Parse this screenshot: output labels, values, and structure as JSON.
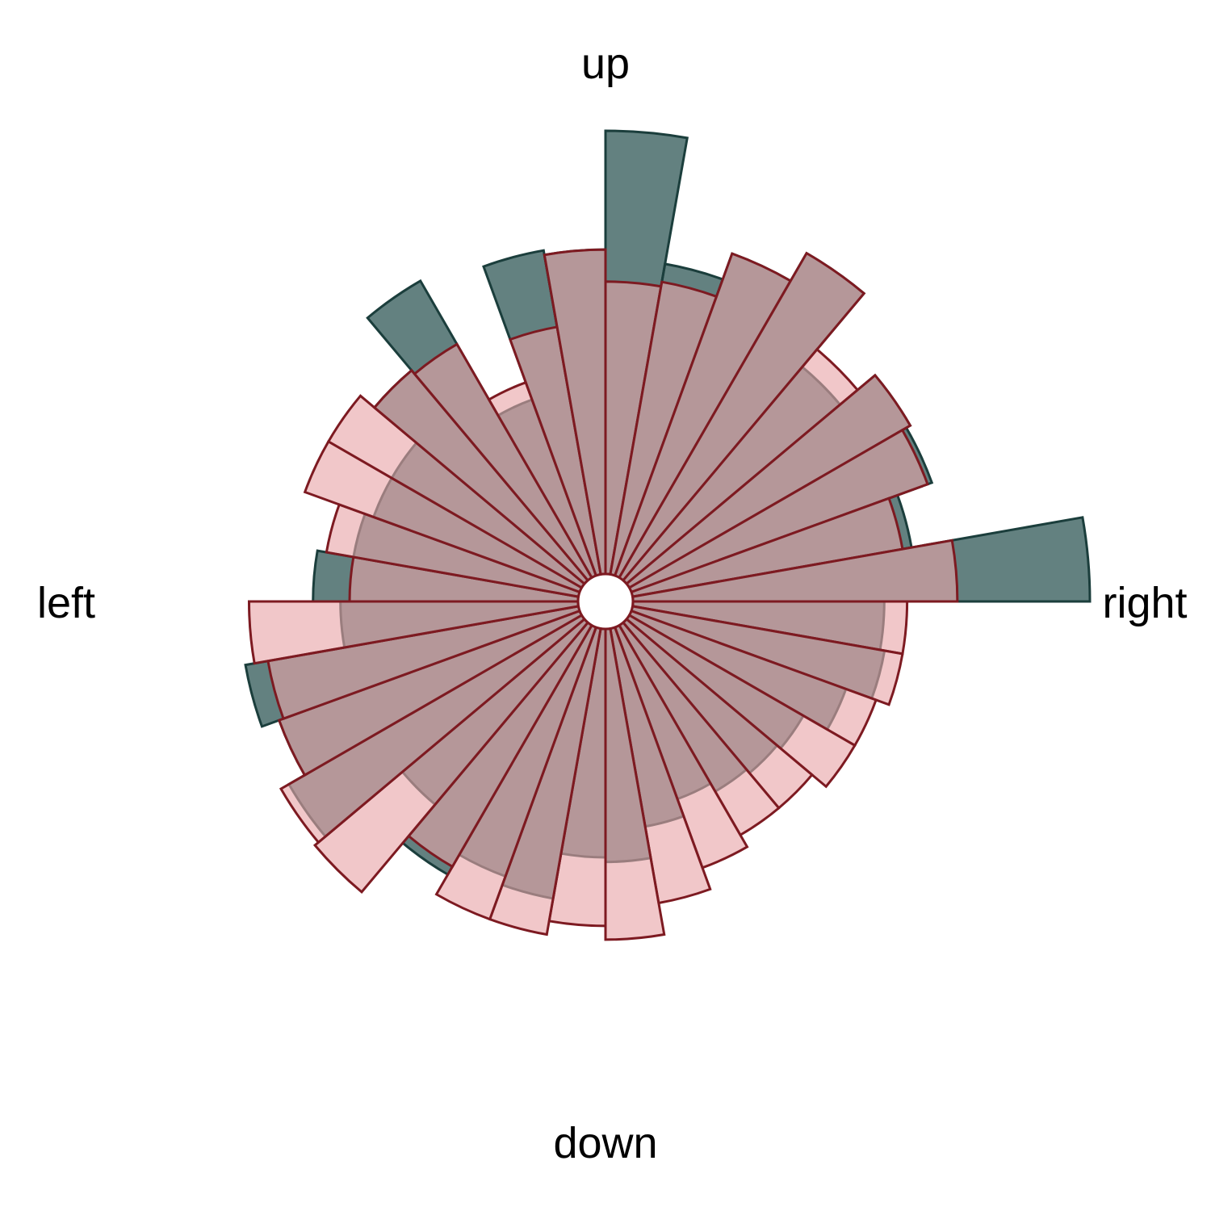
{
  "chart_data": {
    "type": "polar-bar",
    "title": "",
    "direction_labels": {
      "up": "up",
      "down": "down",
      "left": "left",
      "right": "right"
    },
    "bin_count": 36,
    "bin_width_deg": 10,
    "angle_convention": "bin centers in degrees clockwise from up",
    "bin_centers_deg": [
      5,
      15,
      25,
      35,
      45,
      55,
      65,
      75,
      85,
      95,
      105,
      115,
      125,
      135,
      145,
      155,
      165,
      175,
      185,
      195,
      205,
      215,
      225,
      235,
      245,
      255,
      265,
      275,
      285,
      295,
      305,
      315,
      325,
      335,
      345,
      355
    ],
    "series": [
      {
        "values": [
          0.97,
          0.69,
          0.75,
          0.82,
          0.61,
          0.71,
          0.7,
          0.62,
          1.0,
          0.55,
          0.56,
          0.5,
          0.44,
          0.43,
          0.42,
          0.4,
          0.44,
          0.51,
          0.5,
          0.6,
          0.58,
          0.63,
          0.52,
          0.74,
          0.7,
          0.74,
          0.52,
          0.58,
          0.5,
          0.48,
          0.48,
          0.6,
          0.75,
          0.41,
          0.72,
          0.71
        ],
        "fill": "#27514F",
        "stroke": "#1B3E3C",
        "opacity": 0.72
      },
      {
        "values": [
          0.64,
          0.65,
          0.75,
          0.82,
          0.66,
          0.71,
          0.69,
          0.6,
          0.71,
          0.6,
          0.6,
          0.57,
          0.57,
          0.53,
          0.53,
          0.56,
          0.61,
          0.68,
          0.65,
          0.68,
          0.68,
          0.61,
          0.77,
          0.76,
          0.7,
          0.69,
          0.72,
          0.5,
          0.56,
          0.64,
          0.64,
          0.6,
          0.59,
          0.45,
          0.55,
          0.71
        ],
        "fill": "#E8A5A8",
        "stroke": "#7D1A21",
        "opacity": 0.62
      }
    ],
    "rlim": [
      0,
      1
    ],
    "grid": false,
    "legend": "none"
  }
}
